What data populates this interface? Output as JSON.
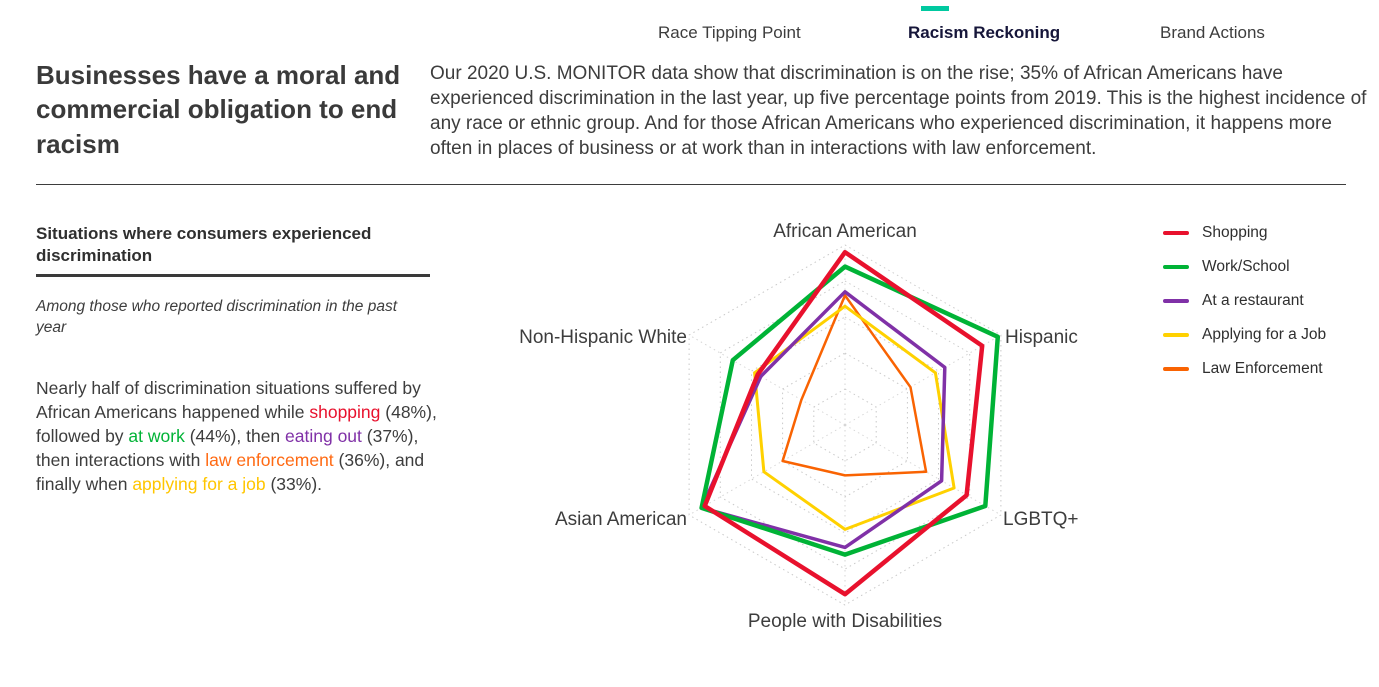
{
  "nav": {
    "tabs": [
      {
        "label": "Race Tipping Point",
        "active": false
      },
      {
        "label": "Racism Reckoning",
        "active": true
      },
      {
        "label": "Brand Actions",
        "active": false
      }
    ]
  },
  "header": {
    "headline": "Businesses have a moral and commercial obligation to end racism",
    "intro": "Our 2020 U.S. MONITOR data show that discrimination is on the rise; 35% of African Americans have experienced discrimination in the last year, up five percentage points from 2019. This is the highest incidence of any race or ethnic group. And for those African Americans who experienced discrimination, it happens more often in places of business or at work than in interactions with law enforcement."
  },
  "sidebar": {
    "section_title": "Situations where consumers experienced discrimination",
    "subtitle": "Among those who reported discrimination in the past year",
    "body_segments": [
      {
        "text": "Nearly half of discrimination situations suffered by African Americans happened while ",
        "color": ""
      },
      {
        "text": "shopping",
        "color": "#e8112d"
      },
      {
        "text": " (48%), followed by ",
        "color": ""
      },
      {
        "text": "at work",
        "color": "#00b336"
      },
      {
        "text": " (44%), then ",
        "color": ""
      },
      {
        "text": "eating out",
        "color": "#8031a7"
      },
      {
        "text": " (37%), then interactions with ",
        "color": ""
      },
      {
        "text": "law enforcement",
        "color": "#ff6a13"
      },
      {
        "text": " (36%), and finally when ",
        "color": ""
      },
      {
        "text": "applying for a job",
        "color": "#ffc600"
      },
      {
        "text": " (33%).",
        "color": ""
      }
    ]
  },
  "chart_data": {
    "type": "radar",
    "title": "Situations where consumers experienced discrimination",
    "categories": [
      "African American",
      "Hispanic",
      "LGBTQ+",
      "People with Disabilities",
      "Asian American",
      "Non-Hispanic White"
    ],
    "series": [
      {
        "name": "Shopping",
        "color": "#e8112d",
        "stroke_width": 4.5,
        "values": [
          48,
          44,
          39,
          47,
          45,
          28
        ]
      },
      {
        "name": "Work/School",
        "color": "#00b336",
        "stroke_width": 4.5,
        "values": [
          44,
          49,
          45,
          36,
          46,
          36
        ]
      },
      {
        "name": "At a restaurant",
        "color": "#8031a7",
        "stroke_width": 3.5,
        "values": [
          37,
          32,
          31,
          34,
          46,
          27
        ]
      },
      {
        "name": "Applying for a Job",
        "color": "#ffd100",
        "stroke_width": 3,
        "values": [
          33,
          29,
          35,
          29,
          26,
          29
        ]
      },
      {
        "name": "Law Enforcement",
        "color": "#f96302",
        "stroke_width": 2.5,
        "values": [
          36,
          21,
          26,
          14,
          20,
          14
        ]
      }
    ],
    "rmax": 50,
    "rings": 5,
    "grid": "dotted",
    "legend_position": "right"
  },
  "accent": {
    "tab_marker": "#00c9a0"
  }
}
